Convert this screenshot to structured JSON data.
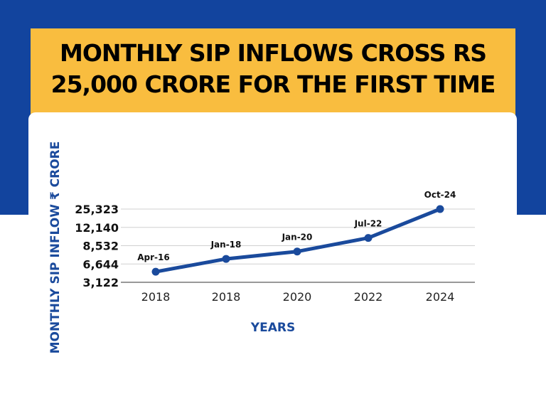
{
  "colors": {
    "background_top": "#12449e",
    "title_bg": "#f9bd3f",
    "line": "#1a4a9c",
    "axis_label": "#1a4a9c"
  },
  "chart_data": {
    "type": "line",
    "title": "MONTHLY SIP INFLOWS CROSS RS 25,000 CRORE FOR THE FIRST TIME",
    "xlabel": "YEARS",
    "ylabel": "MONTHLY SIP INFLOW  ₹ CRORE",
    "x_ticks": [
      "2018",
      "2018",
      "2020",
      "2022",
      "2024"
    ],
    "y_ticks": [
      3122,
      6644,
      8532,
      12140,
      25323
    ],
    "y_tick_labels": [
      "3,122",
      "6,644",
      "8,532",
      "12,140",
      "25,323"
    ],
    "y_scale": "ticks equally spaced (non-linear)",
    "grid": "horizontal",
    "points": [
      {
        "label": "Apr-16",
        "value": 5150
      },
      {
        "label": "Jan-18",
        "value": 7170
      },
      {
        "label": "Jan-20",
        "value": 7930
      },
      {
        "label": "Jul-22",
        "value": 10060
      },
      {
        "label": "Oct-24",
        "value": 25323
      }
    ]
  }
}
